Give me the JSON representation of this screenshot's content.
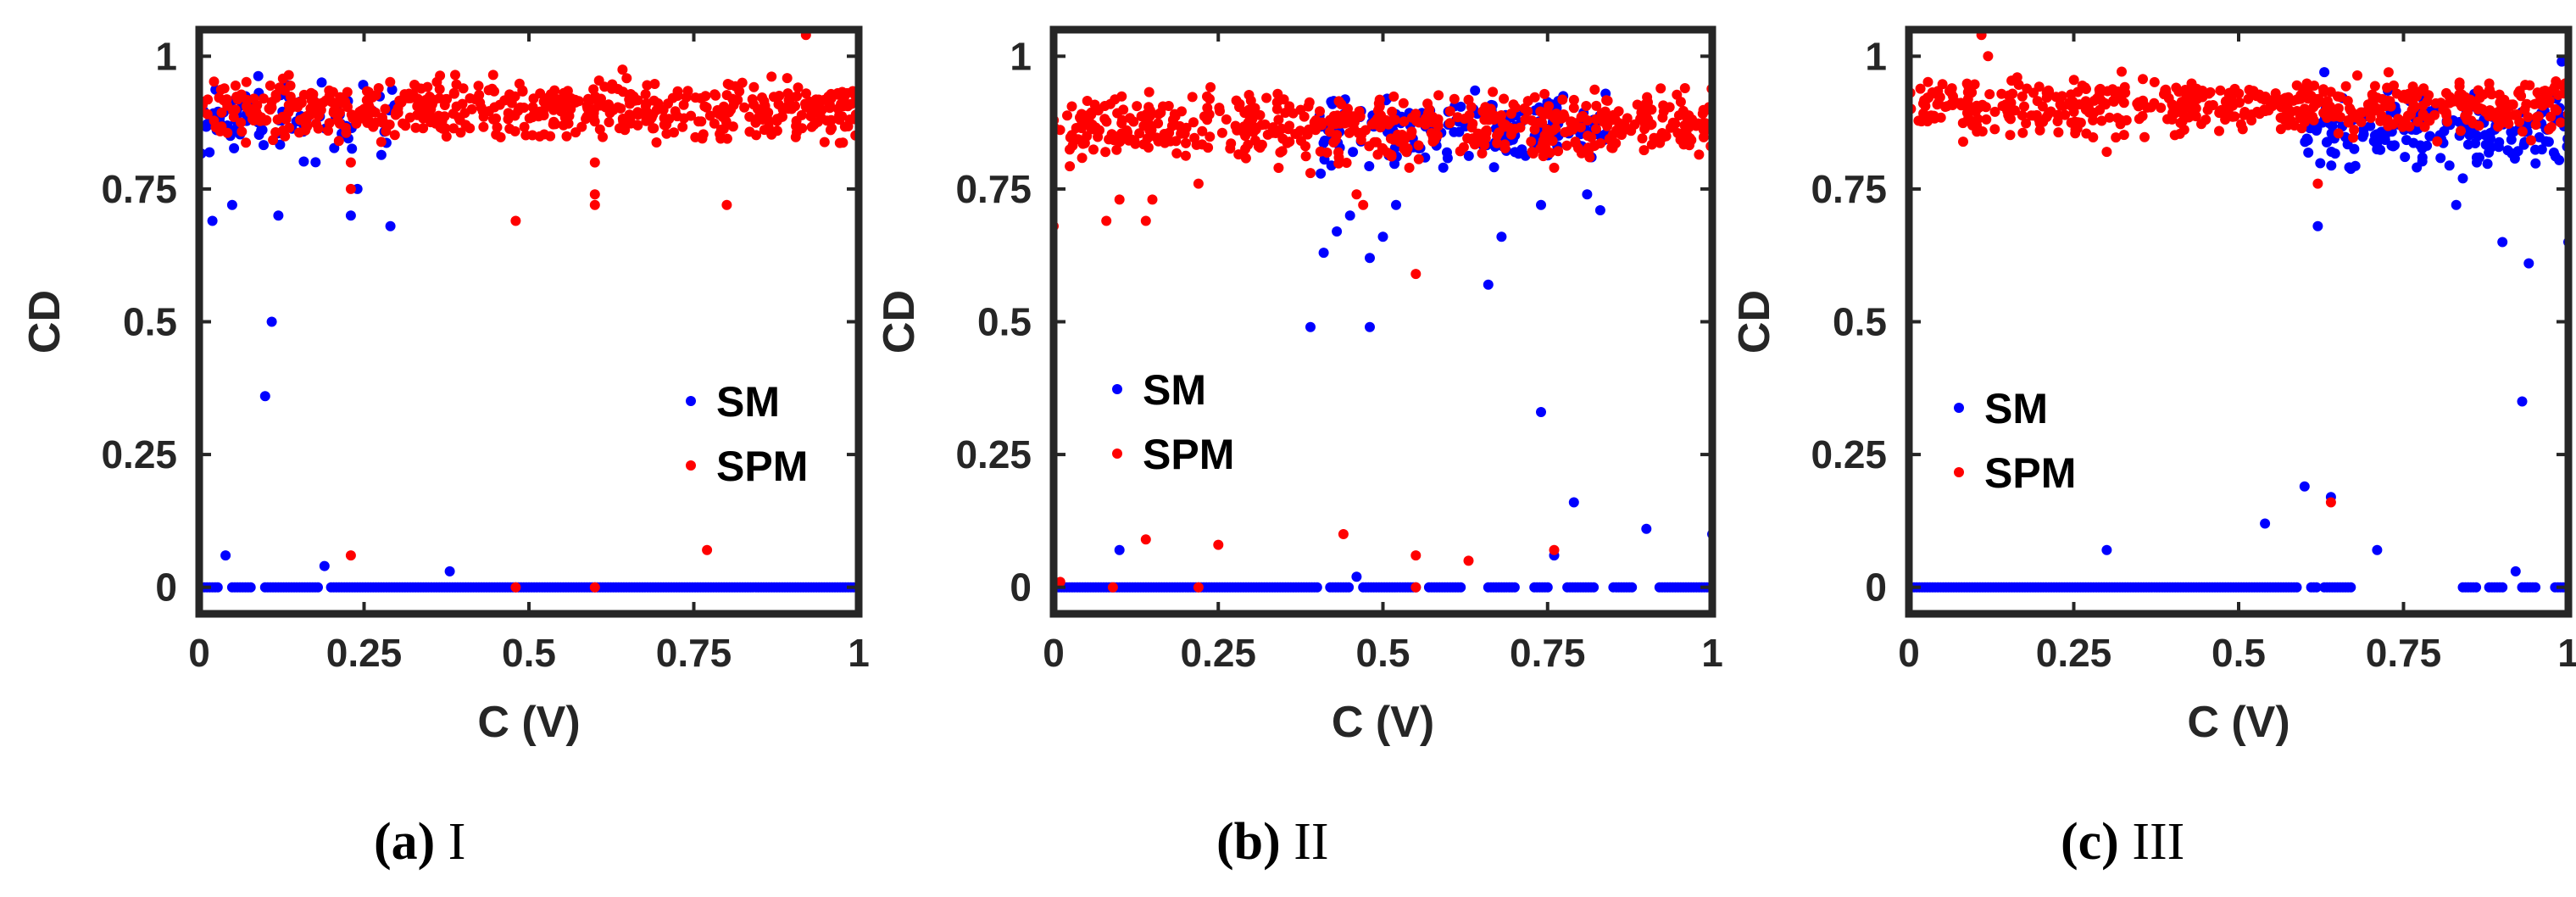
{
  "colors": {
    "SM": "#0000ff",
    "SPM": "#ff0000",
    "axis": "#262626"
  },
  "captions": [
    {
      "letter": "(a)",
      "text": "I"
    },
    {
      "letter": "(b)",
      "text": "II"
    },
    {
      "letter": "(c)",
      "text": "III"
    }
  ],
  "chart_data": [
    {
      "type": "scatter",
      "title": "",
      "xlabel": "C (V)",
      "ylabel": "CD",
      "xlim": [
        0,
        1
      ],
      "ylim": [
        -0.05,
        1.05
      ],
      "xticks": [
        0,
        0.25,
        0.5,
        0.75,
        1
      ],
      "xtick_labels": [
        "0",
        "0.25",
        "0.5",
        "0.75",
        "1"
      ],
      "yticks": [
        0,
        0.25,
        0.5,
        0.75,
        1
      ],
      "ytick_labels": [
        "0",
        "0.25",
        "0.5",
        "0.75",
        "1"
      ],
      "legend": {
        "position": "lower-right",
        "entries": [
          "SM",
          "SPM"
        ]
      },
      "series": [
        {
          "name": "SM",
          "zero_band": [
            [
              0,
              0.03
            ],
            [
              0.05,
              0.08
            ],
            [
              0.1,
              0.18
            ],
            [
              0.2,
              1
            ]
          ],
          "upper_band": {
            "x_from": 0,
            "x_to": 0.3,
            "y_center": 0.88,
            "y_spread": 0.05,
            "count": 90
          },
          "points": [
            [
              0.02,
              0.69
            ],
            [
              0.04,
              0.06
            ],
            [
              0.1,
              0.36
            ],
            [
              0.11,
              0.5
            ],
            [
              0.12,
              0.7
            ],
            [
              0.23,
              0.7
            ],
            [
              0.24,
              0.75
            ],
            [
              0.29,
              0.68
            ],
            [
              0.19,
              0.04
            ],
            [
              0.38,
              0.03
            ],
            [
              0.05,
              0.72
            ]
          ]
        },
        {
          "name": "SPM",
          "upper_band": {
            "x_from": 0,
            "x_to": 1,
            "y_center": 0.9,
            "y_spread": 0.04,
            "count": 560
          },
          "points": [
            [
              0.23,
              0.06
            ],
            [
              0.23,
              0.8
            ],
            [
              0.48,
              0.69
            ],
            [
              0.6,
              0.72
            ],
            [
              0.6,
              0.74
            ],
            [
              0.6,
              0.8
            ],
            [
              0.77,
              0.07
            ],
            [
              0.8,
              0.72
            ],
            [
              0.92,
              1.04
            ],
            [
              0.48,
              0
            ],
            [
              0.6,
              0
            ],
            [
              0.23,
              0.75
            ]
          ]
        }
      ]
    },
    {
      "type": "scatter",
      "title": "",
      "xlabel": "C (V)",
      "ylabel": "CD",
      "xlim": [
        0,
        1
      ],
      "ylim": [
        -0.05,
        1.05
      ],
      "xticks": [
        0,
        0.25,
        0.5,
        0.75,
        1
      ],
      "xtick_labels": [
        "0",
        "0.25",
        "0.5",
        "0.75",
        "1"
      ],
      "yticks": [
        0,
        0.25,
        0.5,
        0.75,
        1
      ],
      "ytick_labels": [
        "0",
        "0.25",
        "0.5",
        "0.75",
        "1"
      ],
      "legend": {
        "position": "middle-left",
        "entries": [
          "SM",
          "SPM"
        ]
      },
      "series": [
        {
          "name": "SM",
          "zero_band": [
            [
              0,
              0.4
            ],
            [
              0.42,
              0.45
            ],
            [
              0.47,
              0.55
            ],
            [
              0.57,
              0.62
            ],
            [
              0.66,
              0.7
            ],
            [
              0.73,
              0.75
            ],
            [
              0.78,
              0.82
            ],
            [
              0.85,
              0.88
            ],
            [
              0.92,
              1
            ]
          ],
          "upper_band": {
            "x_from": 0.4,
            "x_to": 0.84,
            "y_center": 0.86,
            "y_spread": 0.05,
            "count": 160
          },
          "points": [
            [
              0.39,
              0.49
            ],
            [
              0.41,
              0.63
            ],
            [
              0.43,
              0.67
            ],
            [
              0.45,
              0.7
            ],
            [
              0.48,
              0.49
            ],
            [
              0.48,
              0.62
            ],
            [
              0.5,
              0.66
            ],
            [
              0.52,
              0.72
            ],
            [
              0.66,
              0.57
            ],
            [
              0.68,
              0.66
            ],
            [
              0.74,
              0.33
            ],
            [
              0.79,
              0.16
            ],
            [
              0.76,
              0.06
            ],
            [
              0.9,
              0.11
            ],
            [
              1.0,
              0.1
            ],
            [
              0.1,
              0.07
            ],
            [
              0.46,
              0.02
            ],
            [
              0.81,
              0.74
            ],
            [
              0.83,
              0.71
            ],
            [
              0.74,
              0.72
            ]
          ]
        },
        {
          "name": "SPM",
          "upper_band": {
            "x_from": 0,
            "x_to": 1,
            "y_center": 0.87,
            "y_spread": 0.045,
            "count": 540
          },
          "points": [
            [
              0.0,
              0.68
            ],
            [
              0.08,
              0.69
            ],
            [
              0.14,
              0.69
            ],
            [
              0.1,
              0.73
            ],
            [
              0.15,
              0.73
            ],
            [
              0.22,
              0.76
            ],
            [
              0.39,
              0.78
            ],
            [
              0.46,
              0.74
            ],
            [
              0.47,
              0.72
            ],
            [
              0.54,
              0.79
            ],
            [
              0.55,
              0.59
            ],
            [
              0.76,
              0.79
            ],
            [
              0.14,
              0.09
            ],
            [
              0.25,
              0.08
            ],
            [
              0.44,
              0.1
            ],
            [
              0.55,
              0.06
            ],
            [
              0.63,
              0.05
            ],
            [
              0.76,
              0.07
            ],
            [
              0.01,
              0.01
            ],
            [
              0.09,
              0.0
            ],
            [
              0.22,
              0.0
            ],
            [
              0.55,
              0.0
            ]
          ]
        }
      ]
    },
    {
      "type": "scatter",
      "title": "",
      "xlabel": "C (V)",
      "ylabel": "CD",
      "xlim": [
        0,
        1
      ],
      "ylim": [
        -0.05,
        1.05
      ],
      "xticks": [
        0,
        0.25,
        0.5,
        0.75,
        1
      ],
      "xtick_labels": [
        "0",
        "0.25",
        "0.5",
        "0.75",
        "1"
      ],
      "yticks": [
        0,
        0.25,
        0.5,
        0.75,
        1
      ],
      "ytick_labels": [
        "0",
        "0.25",
        "0.5",
        "0.75",
        "1"
      ],
      "legend": {
        "position": "middle-left",
        "entries": [
          "SM",
          "SPM"
        ]
      },
      "series": [
        {
          "name": "SM",
          "zero_band": [
            [
              0,
              0.59
            ],
            [
              0.61,
              0.62
            ],
            [
              0.63,
              0.67
            ],
            [
              0.84,
              0.86
            ],
            [
              0.88,
              0.9
            ],
            [
              0.93,
              0.95
            ],
            [
              0.98,
              1
            ]
          ],
          "upper_band": {
            "x_from": 0.6,
            "x_to": 1,
            "y_center": 0.86,
            "y_spread": 0.045,
            "count": 190
          },
          "points": [
            [
              0.3,
              0.07
            ],
            [
              0.54,
              0.12
            ],
            [
              0.6,
              0.19
            ],
            [
              0.62,
              0.68
            ],
            [
              0.64,
              0.17
            ],
            [
              0.71,
              0.07
            ],
            [
              0.83,
              0.72
            ],
            [
              0.84,
              0.77
            ],
            [
              0.9,
              0.65
            ],
            [
              0.93,
              0.35
            ],
            [
              0.94,
              0.61
            ],
            [
              0.92,
              0.03
            ],
            [
              1.0,
              0.65
            ],
            [
              0.99,
              0.99
            ],
            [
              0.63,
              0.97
            ]
          ]
        },
        {
          "name": "SPM",
          "upper_band": {
            "x_from": 0,
            "x_to": 1,
            "y_center": 0.905,
            "y_spread": 0.04,
            "count": 540
          },
          "points": [
            [
              0.11,
              1.04
            ],
            [
              0.12,
              1.0
            ],
            [
              0.3,
              0.82
            ],
            [
              0.62,
              0.76
            ],
            [
              0.64,
              0.16
            ],
            [
              0.6,
              0.9
            ]
          ]
        }
      ]
    }
  ]
}
